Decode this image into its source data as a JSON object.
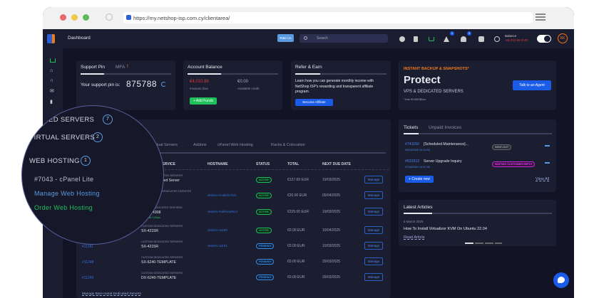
{
  "browser": {
    "url": "https://my.netshop-isp.com.cy/clientarea/"
  },
  "header": {
    "title": "Dashboard",
    "rate_us": "Rate Us",
    "search_placeholder": "Search",
    "notif_count_1": "1",
    "notif_count_2": "3",
    "balance_label": "Balance",
    "balance_value": "-€4,010.89 EUR",
    "avatar": "RK"
  },
  "support": {
    "tab1": "Support Pin",
    "tab2": "MFA",
    "mfa_warn": "!",
    "label": "Your support pin is:",
    "pin": "875788"
  },
  "balance": {
    "title": "Account Balance",
    "due": "€4,010.89",
    "due_label": "Invoices Due",
    "credit": "€0.00",
    "credit_label": "Available credit",
    "add_funds": "+ Add Funds"
  },
  "refer": {
    "title": "Refer & Earn",
    "text": "Learn how you can generate monthly income with NetShop ISP's rewarding and transparent affiliate program.",
    "button": "Become Affiliate"
  },
  "promo": {
    "kicker": "INSTANT BACKUP & SNAPSHOTS*",
    "headline": "Protect",
    "sub": "VPS & DEDICATED SERVERS",
    "note": "* from €0.68/GB/mo.",
    "button": "Talk to an Agent"
  },
  "services": {
    "tabs": [
      "Dedicated Servers",
      "Virtual Servers",
      "Addons",
      "cPanel Web Hosting",
      "Racks & Colocation"
    ],
    "columns": [
      "PRODUCT/SERVICE",
      "HOSTNAME",
      "STATUS",
      "TOTAL",
      "NEXT DUE DATE"
    ],
    "rows": [
      {
        "id": "",
        "category": "CUSTOM DEDICATED SERVERS",
        "name": "R640 Dedicated Server",
        "hostname": "",
        "status": "ACTIVE",
        "total": "€127.69 EUR",
        "due": "19/03/2025",
        "manage": "Manage"
      },
      {
        "id": "",
        "category": "NETHERLANDS DEDICATED SERVERS",
        "name": "SX-2640",
        "hostname": "dedisrv-ricallids7541",
        "status": "ACTIVE",
        "total": "€20.00 EUR",
        "due": "05/04/2025",
        "manage": "Manage"
      },
      {
        "id": "",
        "category": "CYPRUS DEDICATED SERVERS",
        "name": "NS-BS4308",
        "extra": "Upgrade 1Gbps",
        "hostname": "dedisrv-rkallisvu8514",
        "status": "ACTIVE",
        "total": "€225.00 EUR",
        "due": "19/03/2025",
        "manage": "Manage"
      },
      {
        "id": "",
        "category": "CUSTOM DEDICATED SERVERS",
        "name": "SX-4215R",
        "hostname": "dedisrv-11180",
        "status": "ACTIVE",
        "total": "€0.00 EUR",
        "due": "10/04/2025",
        "manage": "Manage"
      },
      {
        "id": "#11181",
        "category": "CUSTOM DEDICATED SERVERS",
        "name": "SX-4215R",
        "hostname": "dedisrv-11181",
        "status": "PENDING",
        "total": "€0.00 EUR",
        "due": "10/03/2025",
        "manage": "Manage"
      },
      {
        "id": "#11248",
        "category": "CUSTOM DEDICATED SERVERS",
        "name": "SX-6240-TEMPLATE",
        "hostname": "",
        "status": "PENDING",
        "total": "€0.00 EUR",
        "due": "29/03/2025",
        "manage": "Manage"
      },
      {
        "id": "#11249",
        "category": "CUSTOM DEDICATED SERVERS",
        "name": "DX-6240-TEMPLATE",
        "hostname": "",
        "status": "PENDING",
        "total": "€0.00 EUR",
        "due": "29/03/2025",
        "manage": "Manage"
      }
    ],
    "footer_link": "Manage Bare-metal Dedicated Servers"
  },
  "tickets": {
    "tab1": "Tickets",
    "tab2": "Unpaid Invoices",
    "items": [
      {
        "id": "#741150",
        "subject": "[Scheduled Maintenance]...",
        "date": "05/03/2025 14:14:53",
        "status": "SENT-OUT"
      },
      {
        "id": "#631512",
        "subject": "Server Upgrade Inquiry",
        "date": "07/08/2024 14:47:35",
        "status": "WAITING CUSTOMER REPLY"
      }
    ],
    "create": "+ Create new",
    "view_all": "View All"
  },
  "articles": {
    "title": "Latest Articles",
    "date": "5 March 2025",
    "headline": "How To Install Virtualizor KVM On Ubuntu 22.04",
    "read": "Read Article"
  },
  "magnifier": {
    "items": [
      {
        "label": "DEDICATED SERVERS",
        "count": "7"
      },
      {
        "label": "VIRTUAL SERVERS",
        "count": "2"
      },
      {
        "label": "WEB HOSTING",
        "count": "1"
      }
    ],
    "hosting": "#7043 - cPanel Lite",
    "manage": "Manage Web Hosting",
    "order": "Order Web Hosting"
  },
  "colors": {
    "accent": "#1a5ce8",
    "active": "#1fbf5a",
    "pending": "#3a8ee8",
    "danger": "#e03a3a",
    "promo": "#f07a1a",
    "waiting": "#c12bd6"
  }
}
